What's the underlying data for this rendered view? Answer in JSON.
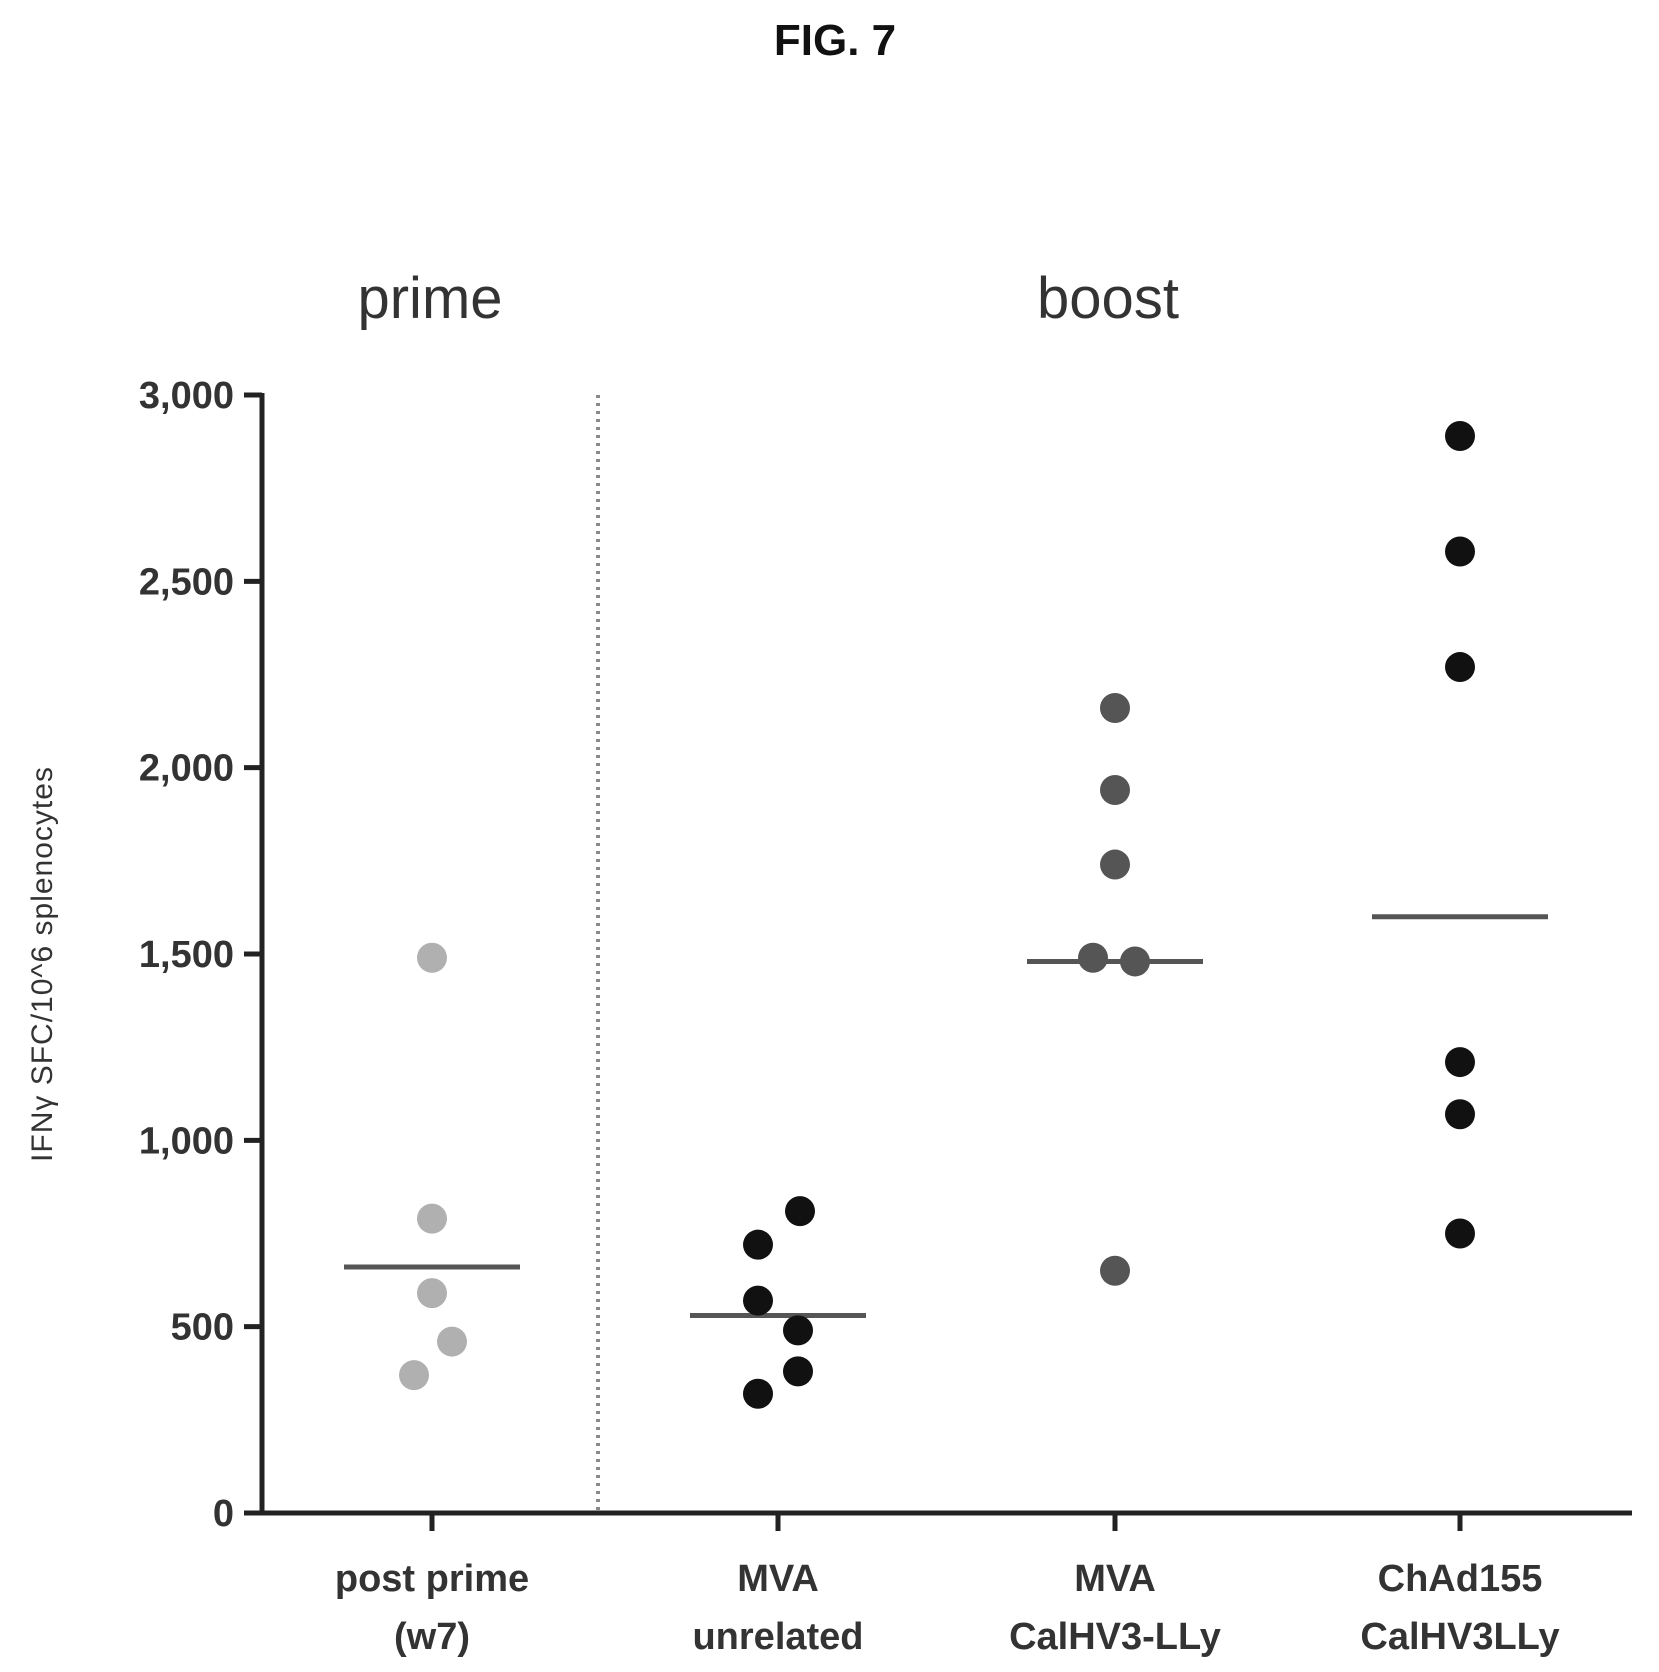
{
  "figure_label": "FIG. 7",
  "colors": {
    "prime_points": "#b0b0b0",
    "unrelated_points": "#111111",
    "mva_points": "#555555",
    "chad_points": "#111111",
    "median_line": "#555555",
    "axis": "#222222",
    "divider": "#888888"
  },
  "chart_data": {
    "type": "scatter",
    "title": "",
    "xlabel": "",
    "ylabel": "IFNγ SFC/10^6 splenocytes",
    "ylim": [
      0,
      3000
    ],
    "yticks": [
      0,
      500,
      1000,
      1500,
      2000,
      2500,
      3000
    ],
    "ytick_labels": [
      "0",
      "500",
      "1,000",
      "1,500",
      "2,000",
      "2,500",
      "3,000"
    ],
    "grid": false,
    "legend": "none",
    "sections": [
      {
        "label": "prime",
        "categories": [
          0
        ]
      },
      {
        "label": "boost",
        "categories": [
          1,
          2,
          3
        ]
      }
    ],
    "divider_after_category": 0,
    "categories": [
      {
        "label_lines": [
          "post prime",
          "(w7)"
        ],
        "color_key": "prime_points",
        "values": [
          1490,
          790,
          590,
          460,
          370
        ],
        "median": 660
      },
      {
        "label_lines": [
          "MVA",
          "unrelated"
        ],
        "color_key": "unrelated_points",
        "values": [
          810,
          720,
          570,
          490,
          380,
          320
        ],
        "median": 530
      },
      {
        "label_lines": [
          "MVA",
          "CalHV3-LLy"
        ],
        "color_key": "mva_points",
        "values": [
          2160,
          1940,
          1740,
          1490,
          1480,
          650
        ],
        "median": 1480
      },
      {
        "label_lines": [
          "ChAd155",
          "CalHV3LLy"
        ],
        "color_key": "chad_points",
        "values": [
          2890,
          2580,
          2270,
          1210,
          1070,
          750
        ],
        "median": 1600
      }
    ]
  }
}
